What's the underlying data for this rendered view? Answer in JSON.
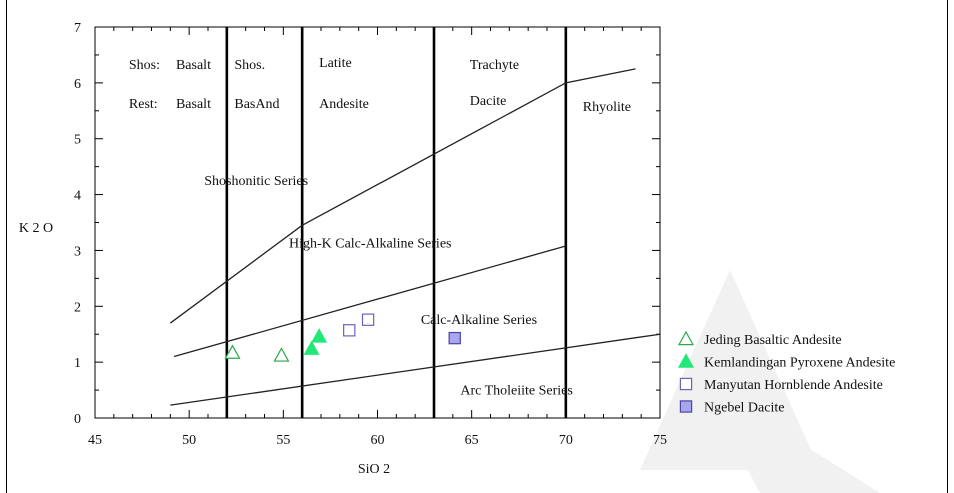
{
  "chart_data": {
    "type": "scatter",
    "xlabel": "SiO 2",
    "ylabel": "K 2 O",
    "xlim": [
      45,
      75
    ],
    "ylim": [
      0,
      7
    ],
    "xticks": [
      "45",
      "50",
      "55",
      "60",
      "65",
      "70",
      "75"
    ],
    "yticks": [
      "0",
      "1",
      "2",
      "3",
      "4",
      "5",
      "6",
      "7"
    ],
    "grid": false,
    "legend_position": "bottom-right",
    "dividers": [
      52,
      56,
      63,
      70
    ],
    "boundaries": [
      {
        "name": "shoshonitic-boundary",
        "points": [
          [
            49,
            1.7
          ],
          [
            56,
            3.45
          ],
          [
            70,
            6.0
          ],
          [
            73.7,
            6.25
          ]
        ]
      },
      {
        "name": "high-k-boundary",
        "points": [
          [
            49.2,
            1.1
          ],
          [
            70,
            3.08
          ]
        ]
      },
      {
        "name": "calc-alkaline-boundary",
        "points": [
          [
            49,
            0.23
          ],
          [
            75,
            1.5
          ]
        ]
      }
    ],
    "field_labels": [
      {
        "text": "Shos:",
        "x": 46.8,
        "y": 6.25
      },
      {
        "text": "Basalt",
        "x": 49.3,
        "y": 6.25
      },
      {
        "text": "Rest:",
        "x": 46.8,
        "y": 5.55
      },
      {
        "text": "Basalt",
        "x": 49.3,
        "y": 5.55
      },
      {
        "text": "Shos.",
        "x": 52.4,
        "y": 6.25
      },
      {
        "text": "BasAnd",
        "x": 52.4,
        "y": 5.55
      },
      {
        "text": "Latite",
        "x": 56.9,
        "y": 6.28
      },
      {
        "text": "Andesite",
        "x": 56.9,
        "y": 5.55
      },
      {
        "text": "Trachyte",
        "x": 64.9,
        "y": 6.25
      },
      {
        "text": "Dacite",
        "x": 64.9,
        "y": 5.6
      },
      {
        "text": "Rhyolite",
        "x": 70.9,
        "y": 5.5
      },
      {
        "text": "Shoshonitic Series",
        "x": 50.8,
        "y": 4.17
      },
      {
        "text": "High-K Calc-Alkaline Series",
        "x": 55.3,
        "y": 3.05
      },
      {
        "text": "Calc-Alkaline Series",
        "x": 62.3,
        "y": 1.68
      },
      {
        "text": "Arc Tholeiite Series",
        "x": 64.4,
        "y": 0.42
      }
    ],
    "series": [
      {
        "name": "Jeding Basaltic Andesite",
        "marker": "triangle-open",
        "color": "#2aa84a",
        "points": [
          [
            52.3,
            1.17
          ],
          [
            54.9,
            1.12
          ]
        ]
      },
      {
        "name": "Kemlandingan Pyroxene Andesite",
        "marker": "triangle-filled",
        "color": "#22e87a",
        "points": [
          [
            56.5,
            1.24
          ],
          [
            56.9,
            1.46
          ]
        ]
      },
      {
        "name": "Manyutan Hornblende Andesite",
        "marker": "square-open",
        "color": "#6a63b8",
        "points": [
          [
            58.5,
            1.57
          ],
          [
            59.5,
            1.76
          ]
        ]
      },
      {
        "name": "Ngebel Dacite",
        "marker": "square-filled",
        "color": "#a8a6ee",
        "points": [
          [
            64.1,
            1.43
          ]
        ]
      }
    ]
  }
}
